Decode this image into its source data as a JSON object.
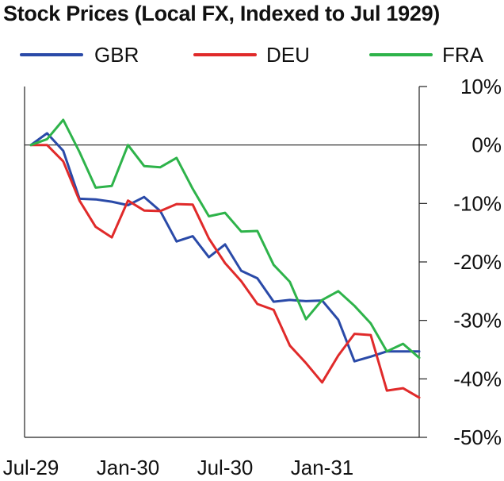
{
  "title": "Stock Prices (Local FX, Indexed to Jul 1929)",
  "chart_data": {
    "type": "line",
    "title": "Stock Prices (Local FX, Indexed to Jul 1929)",
    "xlabel": "",
    "ylabel": "",
    "x": [
      "1929-07",
      "1929-08",
      "1929-09",
      "1929-10",
      "1929-11",
      "1929-12",
      "1930-01",
      "1930-02",
      "1930-03",
      "1930-04",
      "1930-05",
      "1930-06",
      "1930-07",
      "1930-08",
      "1930-09",
      "1930-10",
      "1930-11",
      "1930-12",
      "1931-01",
      "1931-02",
      "1931-03",
      "1931-04",
      "1931-05",
      "1931-06",
      "1931-07"
    ],
    "x_tick_labels": [
      {
        "x": "1929-07",
        "label": "Jul-29"
      },
      {
        "x": "1930-01",
        "label": "Jan-30"
      },
      {
        "x": "1930-07",
        "label": "Jul-30"
      },
      {
        "x": "1931-01",
        "label": "Jan-31"
      }
    ],
    "y_ticks": [
      {
        "value": 10,
        "label": "10%"
      },
      {
        "value": 0,
        "label": "0%"
      },
      {
        "value": -10,
        "label": "-10%"
      },
      {
        "value": -20,
        "label": "-20%"
      },
      {
        "value": -30,
        "label": "-30%"
      },
      {
        "value": -40,
        "label": "-40%"
      },
      {
        "value": -50,
        "label": "-50%"
      }
    ],
    "ylim": [
      -50,
      10
    ],
    "y_unit": "%",
    "zero_line": true,
    "grid": false,
    "legend": "top",
    "series": [
      {
        "name": "GBR",
        "color": "#2a4aa8",
        "values": [
          0,
          2,
          -1,
          -9.2,
          -9.3,
          -9.7,
          -10.3,
          -8.9,
          -11.3,
          -16.5,
          -15.6,
          -19.2,
          -17,
          -21.5,
          -22.8,
          -26.8,
          -26.5,
          -26.7,
          -26.6,
          -29.9,
          -37,
          -36.2,
          -35.3,
          -35.3,
          -35.3
        ]
      },
      {
        "name": "DEU",
        "color": "#e02a2a",
        "values": [
          0,
          0,
          -2.8,
          -9.5,
          -14,
          -15.8,
          -9.5,
          -11.2,
          -11.3,
          -10.1,
          -10.2,
          -16,
          -20.2,
          -23.3,
          -27.2,
          -28.2,
          -34.3,
          -37.3,
          -40.6,
          -36,
          -32.3,
          -32.5,
          -42,
          -41.6,
          -43.2
        ]
      },
      {
        "name": "FRA",
        "color": "#2eb34a",
        "values": [
          0,
          1,
          4.3,
          -1.2,
          -7.3,
          -7,
          0,
          -3.6,
          -3.8,
          -2.2,
          -7.5,
          -12.2,
          -11.6,
          -14.8,
          -14.7,
          -20.5,
          -23.4,
          -29.8,
          -26.5,
          -25,
          -27.5,
          -30.5,
          -35.3,
          -34,
          -36.4
        ]
      }
    ]
  }
}
